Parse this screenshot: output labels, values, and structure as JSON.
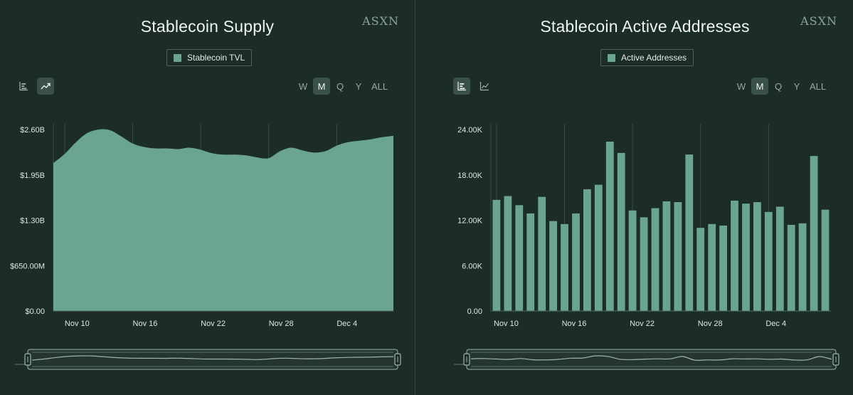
{
  "colors": {
    "bg": "#1c2d26",
    "series": "#6aa58f",
    "grid": "#3b4d45",
    "navigator": "#9cb8ab"
  },
  "range_options": [
    "W",
    "M",
    "Q",
    "Y",
    "ALL"
  ],
  "brand": "ASXN",
  "chart_data": [
    {
      "type": "area",
      "title": "Stablecoin Supply",
      "legend": {
        "items": [
          "Stablecoin TVL"
        ],
        "placement": "top-center"
      },
      "active_view": "line",
      "active_range": "M",
      "x_ticks": [
        "Nov 10",
        "Nov 16",
        "Nov 22",
        "Nov 28",
        "Dec 4"
      ],
      "y_ticks": [
        "$0.00",
        "$650.00M",
        "$1.30B",
        "$1.95B",
        "$2.60B"
      ],
      "ylim": [
        0,
        2.6
      ],
      "y_unit": "B USD",
      "grid": "vertical",
      "series": [
        {
          "name": "Stablecoin TVL",
          "x": [
            "Nov 9",
            "Nov 10",
            "Nov 11",
            "Nov 12",
            "Nov 13",
            "Nov 14",
            "Nov 15",
            "Nov 16",
            "Nov 17",
            "Nov 18",
            "Nov 19",
            "Nov 20",
            "Nov 21",
            "Nov 22",
            "Nov 23",
            "Nov 24",
            "Nov 25",
            "Nov 26",
            "Nov 27",
            "Nov 28",
            "Nov 29",
            "Nov 30",
            "Dec 1",
            "Dec 2",
            "Dec 3",
            "Dec 4",
            "Dec 5",
            "Dec 6",
            "Dec 7",
            "Dec 8",
            "Dec 9"
          ],
          "values": [
            2.12,
            2.25,
            2.42,
            2.55,
            2.6,
            2.59,
            2.5,
            2.4,
            2.35,
            2.33,
            2.33,
            2.32,
            2.34,
            2.31,
            2.26,
            2.24,
            2.24,
            2.23,
            2.2,
            2.19,
            2.29,
            2.34,
            2.3,
            2.27,
            2.29,
            2.37,
            2.42,
            2.44,
            2.46,
            2.49,
            2.51
          ]
        }
      ]
    },
    {
      "type": "bar",
      "title": "Stablecoin Active Addresses",
      "legend": {
        "items": [
          "Active Addresses"
        ],
        "placement": "top-center"
      },
      "active_view": "bar",
      "active_range": "M",
      "x_ticks": [
        "Nov 10",
        "Nov 16",
        "Nov 22",
        "Nov 28",
        "Dec 4"
      ],
      "y_ticks": [
        "0.00",
        "6.00K",
        "12.00K",
        "18.00K",
        "24.00K"
      ],
      "ylim": [
        0,
        24000
      ],
      "grid": "vertical",
      "series": [
        {
          "name": "Active Addresses",
          "x": [
            "Nov 10",
            "Nov 11",
            "Nov 12",
            "Nov 13",
            "Nov 14",
            "Nov 15",
            "Nov 16",
            "Nov 17",
            "Nov 18",
            "Nov 19",
            "Nov 20",
            "Nov 21",
            "Nov 22",
            "Nov 23",
            "Nov 24",
            "Nov 25",
            "Nov 26",
            "Nov 27",
            "Nov 28",
            "Nov 29",
            "Nov 30",
            "Dec 1",
            "Dec 2",
            "Dec 3",
            "Dec 4",
            "Dec 5",
            "Dec 6",
            "Dec 7",
            "Dec 8",
            "Dec 9"
          ],
          "values": [
            14700,
            15200,
            14000,
            12900,
            15100,
            11900,
            11500,
            12900,
            16100,
            16700,
            22400,
            20900,
            13300,
            12400,
            13600,
            14500,
            14400,
            20700,
            11000,
            11500,
            11300,
            14600,
            14200,
            14400,
            13100,
            13800,
            11400,
            11600,
            20500,
            13400
          ]
        }
      ]
    }
  ]
}
